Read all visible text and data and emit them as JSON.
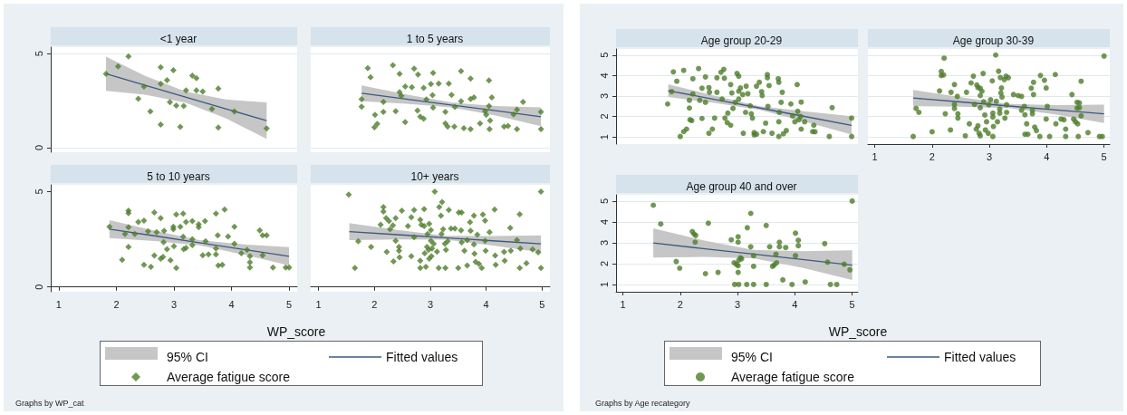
{
  "chart_data": [
    {
      "type": "scatter",
      "title": "<1 year",
      "xlim": [
        0.86,
        5.14
      ],
      "ylim": [
        -0.25,
        5.35
      ],
      "xticks": [
        1,
        2,
        3,
        4,
        5
      ],
      "yticks": [
        0,
        5
      ],
      "tick_labels": "y",
      "grid": "y",
      "series": [
        {
          "type": "line",
          "color": "#3d5a80",
          "x": [
            1.82,
            2.5,
            3.2,
            3.9,
            4.61
          ],
          "values": [
            3.93,
            3.32,
            2.69,
            2.06,
            1.43
          ],
          "lower": [
            3.02,
            2.82,
            2.39,
            1.56,
            0.46
          ],
          "upper": [
            4.84,
            3.82,
            2.99,
            2.56,
            2.4
          ]
        },
        {
          "color": "#4e7d2a",
          "marker": "diamond",
          "x": [
            1.82,
            2.03,
            2.21,
            2.48,
            2.38,
            2.59,
            2.77,
            2.77,
            2.77,
            2.88,
            2.93,
            2.99,
            3.04,
            3.11,
            3.17,
            3.21,
            3.32,
            3.39,
            3.39,
            3.5,
            3.66,
            3.77,
            3.77,
            4.05,
            4.61
          ],
          "values": [
            3.93,
            4.32,
            4.85,
            3.25,
            2.6,
            1.92,
            4.27,
            3.39,
            1.22,
            3.59,
            2.42,
            4.12,
            2.24,
            1.1,
            2.21,
            3.04,
            3.83,
            3.7,
            3.04,
            2.99,
            2.05,
            3.14,
            1.07,
            1.92,
            1.02
          ]
        }
      ]
    },
    {
      "type": "scatter",
      "title": "1 to 5 years",
      "xlim": [
        0.86,
        5.14
      ],
      "ylim": [
        -0.25,
        5.35
      ],
      "xticks": [
        1,
        2,
        3,
        4,
        5
      ],
      "yticks": [
        0,
        5
      ],
      "tick_labels": false,
      "grid": "y",
      "series": [
        {
          "type": "line",
          "color": "#3d5a80",
          "x": [
            1.77,
            2.57,
            3.37,
            4.17,
            4.98
          ],
          "values": [
            2.89,
            2.58,
            2.27,
            1.96,
            1.64
          ],
          "lower": [
            2.47,
            2.33,
            2.14,
            1.71,
            1.14
          ],
          "upper": [
            3.31,
            2.83,
            2.4,
            2.21,
            2.14
          ]
        },
        {
          "color": "#4e7d2a",
          "marker": "diamond",
          "x": [
            1.88,
            1.93,
            1.77,
            1.77,
            2.01,
            2.05,
            2.0,
            2.16,
            2.16,
            2.33,
            2.45,
            2.38,
            2.45,
            2.48,
            2.55,
            2.67,
            2.55,
            2.71,
            2.78,
            2.77,
            2.82,
            2.88,
            2.88,
            2.93,
            3.01,
            3.04,
            3.05,
            3.15,
            3.05,
            3.27,
            3.27,
            3.33,
            3.38,
            3.44,
            3.31,
            3.43,
            3.55,
            3.55,
            3.6,
            3.72,
            3.72,
            3.72,
            3.78,
            3.89,
            3.98,
            4.0,
            4.05,
            4.05,
            4.07,
            4.1,
            4.06,
            4.32,
            4.39,
            4.49,
            4.55,
            4.55,
            4.66,
            4.98,
            4.98
          ],
          "values": [
            4.23,
            3.74,
            2.57,
            2.18,
            1.74,
            1.26,
            1.08,
            2.43,
            1.9,
            4.39,
            3.93,
            1.93,
            2.95,
            2.75,
            3.25,
            3.21,
            1.36,
            4.2,
            3.89,
            1.97,
            1.64,
            1.54,
            3.18,
            2.56,
            3.38,
            2.79,
            3.98,
            3.41,
            2.13,
            1.9,
            1.28,
            3.41,
            2.8,
            2.16,
            1.11,
            1.11,
            4.07,
            2.46,
            1.03,
            3.67,
            0.98,
            2.59,
            2.67,
            1.28,
            1.93,
            1.74,
            3.57,
            2.21,
            1.44,
            2.67,
            0.98,
            1.11,
            1.15,
            1.77,
            2.02,
            0.98,
            2.43,
            1.9,
            0.98
          ]
        }
      ]
    },
    {
      "type": "scatter",
      "title": "5 to 10 years",
      "xlim": [
        0.86,
        5.14
      ],
      "ylim": [
        -0.25,
        5.35
      ],
      "xticks": [
        1,
        2,
        3,
        4,
        5
      ],
      "yticks": [
        0,
        5
      ],
      "series": [
        {
          "type": "line",
          "color": "#3d5a80",
          "x": [
            1.88,
            2.66,
            3.44,
            4.22,
            5.0
          ],
          "values": [
            3.03,
            2.68,
            2.32,
            1.96,
            1.61
          ],
          "lower": [
            2.56,
            2.41,
            2.18,
            1.69,
            1.13
          ],
          "upper": [
            3.5,
            2.95,
            2.46,
            2.23,
            2.09
          ]
        },
        {
          "color": "#4e7d2a",
          "marker": "diamond",
          "x": [
            1.88,
            2.1,
            2.15,
            2.21,
            2.21,
            2.21,
            2.21,
            2.32,
            2.38,
            2.48,
            2.48,
            2.55,
            2.6,
            2.66,
            2.66,
            2.7,
            2.77,
            2.77,
            2.81,
            2.82,
            2.83,
            2.88,
            2.94,
            2.99,
            2.99,
            3.0,
            3.04,
            3.04,
            3.11,
            3.16,
            3.16,
            3.17,
            3.21,
            3.21,
            3.32,
            3.32,
            3.32,
            3.43,
            3.43,
            3.54,
            3.55,
            3.5,
            3.6,
            3.73,
            3.73,
            3.73,
            3.76,
            3.77,
            3.84,
            3.88,
            3.94,
            4.05,
            4.05,
            4.17,
            4.27,
            4.32,
            4.32,
            4.32,
            4.49,
            4.54,
            4.54,
            4.61,
            4.72,
            4.94,
            5.0
          ],
          "values": [
            3.16,
            1.42,
            2.77,
            4.0,
            3.87,
            3.13,
            2.1,
            2.77,
            3.4,
            3.47,
            1.16,
            2.92,
            1.05,
            3.9,
            1.65,
            2.87,
            3.61,
            1.48,
            1.58,
            2.35,
            2.94,
            1.98,
            1.4,
            3.16,
            3.03,
            2.13,
            1.0,
            3.79,
            3.16,
            3.84,
            2.63,
            1.98,
            2.05,
            3.4,
            3.45,
            2.5,
            2.19,
            3.29,
            3.13,
            3.45,
            2.39,
            1.66,
            1.71,
            3.84,
            2.02,
            1.71,
            2.71,
            1.13,
            1.16,
            4.06,
            2.65,
            3.15,
            2.26,
            1.77,
            1.94,
            1.61,
            1.29,
            1.02,
            2.97,
            2.71,
            1.66,
            2.71,
            1.02,
            1.02,
            1.02
          ]
        }
      ]
    },
    {
      "type": "scatter",
      "title": "10+ years",
      "xlabel": "WP_score",
      "xlim": [
        0.86,
        5.14
      ],
      "ylim": [
        -0.25,
        5.35
      ],
      "xticks": [
        1,
        2,
        3,
        4,
        5
      ],
      "yticks": [
        0,
        5
      ],
      "tick_labels": "x",
      "legend": "bottom",
      "annotations": [
        "95% CI",
        "Graphs by WP_cat"
      ],
      "series": [
        {
          "name": "Fitted values",
          "type": "line",
          "color": "#3d5a80",
          "x": [
            1.55,
            2.41,
            3.27,
            4.12,
            4.98
          ],
          "values": [
            2.9,
            2.74,
            2.58,
            2.42,
            2.26
          ],
          "lower": [
            2.45,
            2.49,
            2.48,
            2.17,
            1.82
          ],
          "upper": [
            3.35,
            2.99,
            2.68,
            2.67,
            2.7
          ]
        },
        {
          "name": "Average fatigue score",
          "color": "#4e7d2a",
          "marker": "diamond",
          "x": [
            1.54,
            1.65,
            1.71,
            1.94,
            2.11,
            2.16,
            2.16,
            2.21,
            2.22,
            2.26,
            2.28,
            2.33,
            2.34,
            2.38,
            2.38,
            2.44,
            2.44,
            2.49,
            2.45,
            2.6,
            2.66,
            2.66,
            2.71,
            2.71,
            2.82,
            2.82,
            2.82,
            2.84,
            2.89,
            2.89,
            2.9,
            2.92,
            2.94,
            2.95,
            2.97,
            2.98,
            2.98,
            3.01,
            3.01,
            3.02,
            3.03,
            3.08,
            3.06,
            3.12,
            3.15,
            3.16,
            3.19,
            3.2,
            3.21,
            3.23,
            3.26,
            3.28,
            3.27,
            3.31,
            3.33,
            3.37,
            3.44,
            3.5,
            3.51,
            3.56,
            3.55,
            3.56,
            3.61,
            3.66,
            3.66,
            3.71,
            3.72,
            3.78,
            3.78,
            3.79,
            3.81,
            3.84,
            3.87,
            3.92,
            3.94,
            3.98,
            3.98,
            3.99,
            4.06,
            4.15,
            4.16,
            4.17,
            4.32,
            4.33,
            4.43,
            4.44,
            4.55,
            4.6,
            4.61,
            4.6,
            4.72,
            4.83,
            4.93,
            4.98,
            4.98
          ],
          "values": [
            4.84,
            1.0,
            2.39,
            2.1,
            3.26,
            4.19,
            3.95,
            3.61,
            1.84,
            3.45,
            3.03,
            3.23,
            1.34,
            3.61,
            2.42,
            2.1,
            1.9,
            4.0,
            1.55,
            3.19,
            3.65,
            1.61,
            4.03,
            2.61,
            1.37,
            1.0,
            3.52,
            3.26,
            4.08,
            3.19,
            1.77,
            1.05,
            2.1,
            2.77,
            1.94,
            3.31,
            1.48,
            2.98,
            2.42,
            1.61,
            2.02,
            5.0,
            2.26,
            1.85,
            1.0,
            4.19,
            3.74,
            2.77,
            4.45,
            3.03,
            2.26,
            1.94,
            1.0,
            2.39,
            4.03,
            3.06,
            3.06,
            1.0,
            3.9,
            3.9,
            2.97,
            2.34,
            1.9,
            1.13,
            2.45,
            3.39,
            2.94,
            3.74,
            2.23,
            1.74,
            1.32,
            2.74,
            1.21,
            1.0,
            3.79,
            3.48,
            2.42,
            1.9,
            2.87,
            4.06,
            1.65,
            1.16,
            1.84,
            1.37,
            3.1,
            1.9,
            2.45,
            3.81,
            2.02,
            1.0,
            1.24,
            1.97,
            1.81,
            5.0,
            1.0
          ]
        }
      ]
    },
    {
      "type": "scatter",
      "title": "Age group 20-29",
      "xlim": [
        0.88,
        5.1
      ],
      "ylim": [
        0.65,
        5.3
      ],
      "xticks": [
        1,
        2,
        3,
        4,
        5
      ],
      "yticks": [
        1,
        2,
        3,
        4,
        5
      ],
      "tick_labels": "y",
      "grid": "y",
      "series": [
        {
          "type": "line",
          "color": "#3d5a80",
          "x": [
            1.79,
            2.59,
            3.39,
            4.19,
            4.99
          ],
          "values": [
            3.26,
            2.84,
            2.41,
            1.99,
            1.56
          ],
          "lower": [
            2.95,
            2.66,
            2.32,
            1.74,
            1.11
          ],
          "upper": [
            3.57,
            3.02,
            2.5,
            2.24,
            2.01
          ]
        },
        {
          "color": "#4e7d2a",
          "marker": "circle",
          "x": [
            1.78,
            1.85,
            1.88,
            1.94,
            2.0,
            2.06,
            2.06,
            2.11,
            2.16,
            2.16,
            2.17,
            2.2,
            2.22,
            2.22,
            2.32,
            2.34,
            2.38,
            2.38,
            2.44,
            2.44,
            2.5,
            2.5,
            2.51,
            2.56,
            2.6,
            2.64,
            2.64,
            2.71,
            2.76,
            2.77,
            2.73,
            2.78,
            2.82,
            2.83,
            2.88,
            2.88,
            2.9,
            2.92,
            2.96,
            2.99,
            3.02,
            3.02,
            3.02,
            3.05,
            3.09,
            3.1,
            3.14,
            3.15,
            3.18,
            3.22,
            3.24,
            3.26,
            3.29,
            3.29,
            3.33,
            3.33,
            3.38,
            3.42,
            3.43,
            3.45,
            3.49,
            3.52,
            3.52,
            3.53,
            3.55,
            3.6,
            3.72,
            3.72,
            3.71,
            3.72,
            3.73,
            3.76,
            3.78,
            3.8,
            3.85,
            3.93,
            3.96,
            4.0,
            4.04,
            4.05,
            4.07,
            4.1,
            4.11,
            4.11,
            4.17,
            4.31,
            4.35,
            4.33,
            4.6,
            4.65,
            4.99,
            4.99
          ],
          "values": [
            2.61,
            3.21,
            4.18,
            3.72,
            1.02,
            4.25,
            1.26,
            1.38,
            2.41,
            2.79,
            1.84,
            1.8,
            3.1,
            3.84,
            4.34,
            2.79,
            1.9,
            3.38,
            3.93,
            2.69,
            3.41,
            1.18,
            3.18,
            1.38,
            1.92,
            3.18,
            3.89,
            4.16,
            4.3,
            3.87,
            2.85,
            1.92,
            1.7,
            2.16,
            1.57,
            3.56,
            3.15,
            2.39,
            2.69,
            4.1,
            3.97,
            3.23,
            2.85,
            3.39,
            3.07,
            1.18,
            2.2,
            3.48,
            3.11,
            2.52,
            2.13,
            1.92,
            1.21,
            1.1,
            1.13,
            3.48,
            3.67,
            3.21,
            3.02,
            1.26,
            1.67,
            3.89,
            4.05,
            2.49,
            3.51,
            1.18,
            1.02,
            1.74,
            3.84,
            3.67,
            2.2,
            2.69,
            3.18,
            1.15,
            1.31,
            2.61,
            2.03,
            1.74,
            3.56,
            2.25,
            1.84,
            2.0,
            2.7,
            1.38,
            1.74,
            1.26,
            1.25,
            1.57,
            1.02,
            2.43,
            1.92,
            1.02
          ]
        }
      ]
    },
    {
      "type": "scatter",
      "title": "Age group 30-39",
      "xlim": [
        0.88,
        5.1
      ],
      "ylim": [
        0.65,
        5.3
      ],
      "xticks": [
        1,
        2,
        3,
        4,
        5
      ],
      "yticks": [
        1,
        2,
        3,
        4,
        5
      ],
      "tick_labels": "x",
      "grid": "y",
      "series": [
        {
          "type": "line",
          "color": "#3d5a80",
          "x": [
            1.67,
            2.5,
            3.34,
            4.17,
            5.0
          ],
          "values": [
            2.9,
            2.71,
            2.51,
            2.32,
            2.13
          ],
          "lower": [
            2.5,
            2.48,
            2.41,
            2.09,
            1.68
          ],
          "upper": [
            3.3,
            2.94,
            2.61,
            2.55,
            2.58
          ]
        },
        {
          "color": "#4e7d2a",
          "marker": "circle",
          "x": [
            1.67,
            1.72,
            1.77,
            2.0,
            2.13,
            2.16,
            2.16,
            2.2,
            2.21,
            2.23,
            2.32,
            2.33,
            2.39,
            2.39,
            2.39,
            2.44,
            2.45,
            2.45,
            2.58,
            2.6,
            2.65,
            2.68,
            2.72,
            2.74,
            2.77,
            2.78,
            2.8,
            2.84,
            2.8,
            2.82,
            2.84,
            2.84,
            2.84,
            2.87,
            2.89,
            2.9,
            2.92,
            2.93,
            2.95,
            2.98,
            2.99,
            3.02,
            3.05,
            3.06,
            3.06,
            3.06,
            3.07,
            3.11,
            3.12,
            3.14,
            3.16,
            3.18,
            3.18,
            3.19,
            3.2,
            3.21,
            3.22,
            3.26,
            3.29,
            3.27,
            3.3,
            3.3,
            3.33,
            3.42,
            3.5,
            3.56,
            3.56,
            3.61,
            3.62,
            3.67,
            3.65,
            3.62,
            3.73,
            3.77,
            3.75,
            3.75,
            3.77,
            3.79,
            3.82,
            3.88,
            3.89,
            3.96,
            3.99,
            3.99,
            4.01,
            4.05,
            4.15,
            4.16,
            4.25,
            4.3,
            4.33,
            4.33,
            4.44,
            4.47,
            4.5,
            4.53,
            4.53,
            4.57,
            4.57,
            4.54,
            4.55,
            4.6,
            4.6,
            4.72,
            4.92,
            4.97,
            5.0
          ],
          "values": [
            1.02,
            2.39,
            2.2,
            1.25,
            3.25,
            4.2,
            4.0,
            4.03,
            4.85,
            2.13,
            1.34,
            3.18,
            3.56,
            2.59,
            2.39,
            2.98,
            2.13,
            1.92,
            1.05,
            3.18,
            1.64,
            3.64,
            3.97,
            2.59,
            1.38,
            3.54,
            3.41,
            3.38,
            1.54,
            1.18,
            1.05,
            2.43,
            3.02,
            3.23,
            4.1,
            2.72,
            2.07,
            1.34,
            1.74,
            1.18,
            2.57,
            2.82,
            3.74,
            2.16,
            1.97,
            1.02,
            1.51,
            5.0,
            2.74,
            1.74,
            4.21,
            2.36,
            2.16,
            3.9,
            3.15,
            3.39,
            2.95,
            3.8,
            3.97,
            1.92,
            2.2,
            2.57,
            3.89,
            3.07,
            3.02,
            2.98,
            2.3,
            2.49,
            1.13,
            1.13,
            1.64,
            2.08,
            3.38,
            3.07,
            2.3,
            2.13,
            3.67,
            1.48,
            1.31,
            1.02,
            4.0,
            3.77,
            3.39,
            1.87,
            2.49,
            1.02,
            4.05,
            1.64,
            1.87,
            1.84,
            1.38,
            1.02,
            3.07,
            1.87,
            1.74,
            2.69,
            2.41,
            2.66,
            2.43,
            1.64,
            1.02,
            3.72,
            2.03,
            1.21,
            1.02,
            1.02,
            4.95
          ]
        }
      ]
    },
    {
      "type": "scatter",
      "title": "Age group 40 and over",
      "xlabel": "WP_score",
      "xlim": [
        0.88,
        5.1
      ],
      "ylim": [
        0.65,
        5.3
      ],
      "xticks": [
        1,
        2,
        3,
        4,
        5
      ],
      "yticks": [
        1,
        2,
        3,
        4,
        5
      ],
      "grid": "y",
      "legend": "bottom",
      "annotations": [
        "95% CI",
        "Graphs by Age recategory"
      ],
      "series": [
        {
          "name": "Fitted values",
          "type": "line",
          "color": "#3d5a80",
          "x": [
            1.53,
            2.4,
            3.27,
            4.13,
            5.0
          ],
          "values": [
            2.99,
            2.72,
            2.46,
            2.2,
            1.93
          ],
          "lower": [
            2.29,
            2.32,
            2.26,
            1.8,
            1.22
          ],
          "upper": [
            3.69,
            3.12,
            2.66,
            2.6,
            2.64
          ]
        },
        {
          "name": "Average fatigue score",
          "color": "#4e7d2a",
          "marker": "circle",
          "x": [
            1.53,
            1.66,
            1.93,
            1.99,
            2.21,
            2.24,
            2.27,
            2.26,
            2.44,
            2.49,
            2.66,
            2.89,
            2.94,
            2.98,
            2.95,
            3.02,
            3.01,
            3.01,
            3.02,
            3.05,
            3.07,
            3.01,
            3.01,
            3.16,
            3.17,
            3.23,
            3.23,
            3.28,
            3.28,
            3.28,
            3.5,
            3.5,
            3.56,
            3.61,
            3.64,
            3.67,
            3.68,
            3.73,
            3.73,
            3.79,
            3.84,
            3.95,
            4.01,
            4.01,
            4.06,
            4.06,
            4.18,
            4.52,
            4.57,
            4.62,
            4.73,
            4.86,
            4.96,
            5.0
          ],
          "values": [
            4.8,
            3.9,
            2.1,
            1.78,
            3.54,
            3.42,
            3.35,
            3.03,
            1.52,
            3.94,
            1.58,
            3.14,
            2.04,
            1.96,
            1.0,
            1.0,
            3.29,
            3.03,
            2.16,
            2.28,
            2.23,
            1.58,
            1.9,
            1.0,
            3.72,
            4.41,
            2.81,
            1.0,
            2.38,
            1.87,
            3.83,
            1.0,
            2.81,
            1.87,
            1.94,
            2.45,
            2.04,
            3.03,
            2.81,
            1.22,
            2.77,
            1.0,
            3.46,
            2.38,
            3.12,
            2.86,
            1.12,
            2.96,
            2.07,
            1.0,
            1.0,
            1.97,
            1.7,
            5.0
          ]
        }
      ]
    }
  ]
}
